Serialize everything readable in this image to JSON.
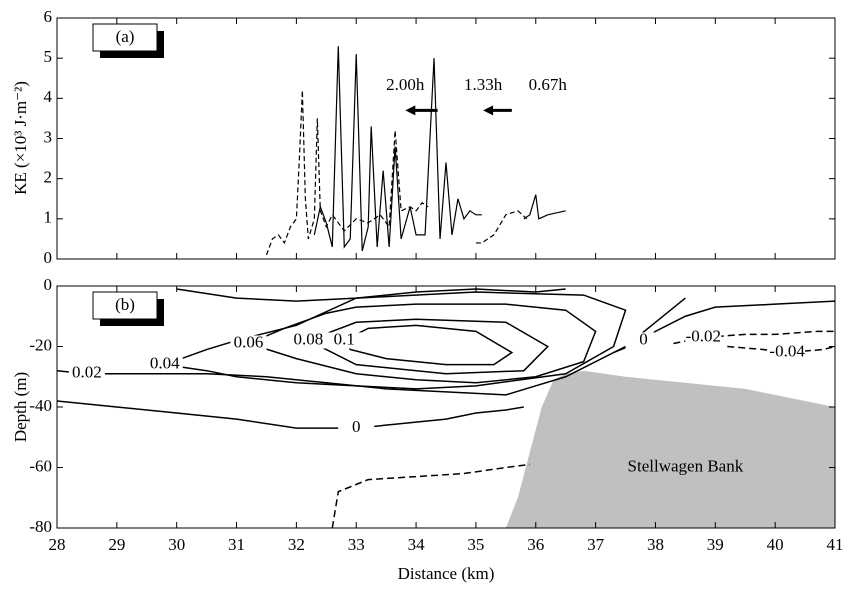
{
  "chart_data": [
    {
      "type": "line",
      "panel": "(a)",
      "ylabel": "KE (×10³ J·m⁻²)",
      "xlim": [
        28,
        41
      ],
      "xticks": [
        28,
        29,
        30,
        31,
        32,
        33,
        34,
        35,
        36,
        37,
        38,
        39,
        40,
        41
      ],
      "ylim": [
        0,
        6
      ],
      "yticks": [
        0,
        1,
        2,
        3,
        4,
        5,
        6
      ],
      "annotations": [
        "2.00h",
        "1.33h",
        "0.67h"
      ],
      "series": [
        {
          "color": "#000000",
          "dash": true,
          "x": [
            31.5,
            31.6,
            31.7,
            31.8,
            31.9,
            32.0,
            32.05,
            32.1,
            32.15,
            32.2,
            32.3,
            32.35,
            32.4,
            32.5,
            32.6,
            32.8,
            33.0,
            33.2,
            33.4,
            33.55,
            33.65,
            33.75,
            33.9,
            34.0,
            34.1,
            34.2
          ],
          "values": [
            0.1,
            0.5,
            0.6,
            0.4,
            0.8,
            1.0,
            2.5,
            4.2,
            1.5,
            0.5,
            1.0,
            3.5,
            1.2,
            0.8,
            1.1,
            0.7,
            1.0,
            0.9,
            1.1,
            0.8,
            3.2,
            1.2,
            1.3,
            1.2,
            1.4,
            1.3
          ]
        },
        {
          "color": "#000000",
          "dash": false,
          "x": [
            32.3,
            32.4,
            32.5,
            32.6,
            32.7,
            32.8,
            32.9,
            33.0,
            33.1,
            33.2,
            33.25,
            33.35,
            33.45,
            33.55,
            33.65,
            33.75,
            33.9,
            34.0,
            34.15,
            34.3,
            34.4,
            34.5,
            34.6,
            34.7,
            34.8,
            34.9,
            35.0,
            35.1
          ],
          "values": [
            0.6,
            1.3,
            0.9,
            0.3,
            5.3,
            0.3,
            0.5,
            5.1,
            0.2,
            0.8,
            3.3,
            0.3,
            2.2,
            0.3,
            2.8,
            0.5,
            1.3,
            0.6,
            0.6,
            5.0,
            0.5,
            2.4,
            0.6,
            1.5,
            1.0,
            1.2,
            1.1,
            1.1
          ]
        },
        {
          "color": "#000000",
          "dash": true,
          "x": [
            35.0,
            35.1,
            35.3,
            35.5,
            35.7,
            35.85
          ],
          "values": [
            0.4,
            0.4,
            0.6,
            1.1,
            1.2,
            1.0
          ]
        },
        {
          "color": "#000000",
          "dash": false,
          "x": [
            35.8,
            35.9,
            36.0,
            36.05,
            36.2,
            36.5
          ],
          "values": [
            1.0,
            1.1,
            1.6,
            1.0,
            1.1,
            1.2
          ]
        }
      ]
    },
    {
      "type": "contour",
      "panel": "(b)",
      "xlabel": "Distance (km)",
      "ylabel": "Depth (m)",
      "xlim": [
        28,
        41
      ],
      "xticks": [
        28,
        29,
        30,
        31,
        32,
        33,
        34,
        35,
        36,
        37,
        38,
        39,
        40,
        41
      ],
      "ylim": [
        -80,
        0
      ],
      "yticks": [
        -80,
        -60,
        -40,
        -20,
        0
      ],
      "contours": [
        {
          "level": 0.1,
          "dash": false,
          "labeled": true,
          "x": [
            32.8,
            33.2,
            34,
            35,
            35.6,
            35.3,
            34.5,
            33.5,
            32.9,
            32.8
          ],
          "values": [
            -18,
            -14,
            -13,
            -15,
            -22,
            -26,
            -26,
            -24,
            -21,
            -18
          ]
        },
        {
          "level": 0.08,
          "dash": false,
          "labeled": true,
          "x": [
            32.2,
            33,
            34,
            35.5,
            36.2,
            35.8,
            34.5,
            33,
            32.2
          ],
          "values": [
            -18,
            -12,
            -11,
            -12,
            -20,
            -28,
            -29,
            -26,
            -18
          ]
        },
        {
          "level": 0.06,
          "dash": false,
          "labeled": true,
          "x": [
            31.2,
            31.8,
            32.5,
            33,
            34,
            35.5,
            36.5,
            37,
            36.8,
            36,
            35,
            34,
            33,
            32,
            31.2
          ],
          "values": [
            -19,
            -14,
            -9,
            -7,
            -6,
            -6,
            -8,
            -15,
            -25,
            -30,
            -32,
            -31,
            -29,
            -24,
            -19
          ]
        },
        {
          "level": 0.04,
          "dash": false,
          "labeled": true,
          "x": [
            29.8,
            30.5,
            31,
            32,
            33,
            35,
            36.8,
            37.5,
            37.3,
            36.5,
            35,
            34,
            33,
            32,
            31,
            30.5,
            29.8
          ],
          "values": [
            -26,
            -21,
            -18,
            -13,
            -4,
            -2,
            -3,
            -8,
            -20,
            -29,
            -33,
            -34,
            -33,
            -32,
            -30,
            -28,
            -26
          ]
        },
        {
          "level": 0.02,
          "dash": false,
          "labeled": true,
          "x": [
            28,
            28.5,
            29.5,
            30.5,
            31.5,
            32.5,
            33.5,
            34.5,
            35.5,
            36.5,
            37.5,
            38,
            38.5
          ],
          "values": [
            -28,
            -29,
            -29,
            -29,
            -30,
            -32,
            -34,
            -35,
            -36,
            -30,
            -20,
            -12,
            -4
          ]
        },
        {
          "level": 0,
          "dash": false,
          "labeled": true,
          "x": [
            28,
            29,
            30,
            31,
            32,
            33,
            34,
            34.5,
            35,
            35.5,
            35.8
          ],
          "values": [
            -38,
            -40,
            -42,
            -44,
            -47,
            -47,
            -45,
            -44,
            -42,
            -41,
            -40
          ]
        },
        {
          "level": 0,
          "dash": false,
          "labeled": true,
          "x": [
            37.3,
            37.8,
            38,
            38.5,
            39,
            40,
            41
          ],
          "values": [
            -22,
            -18,
            -15,
            -10,
            -7,
            -6,
            -5
          ]
        },
        {
          "level": -0.02,
          "dash": true,
          "labeled": true,
          "x": [
            38.3,
            38.8,
            39.5,
            40,
            40.7,
            41
          ],
          "values": [
            -19,
            -17,
            -16,
            -16,
            -15,
            -15
          ]
        },
        {
          "level": -0.04,
          "dash": true,
          "labeled": true,
          "x": [
            39.2,
            39.8,
            40.2,
            40.8,
            41
          ],
          "values": [
            -20,
            -21,
            -22,
            -21,
            -20
          ]
        },
        {
          "level": 0,
          "dash": true,
          "labeled": false,
          "x": [
            32.6,
            32.7,
            33.2,
            34,
            34.8,
            35.5,
            35.9
          ],
          "values": [
            -80,
            -68,
            -64,
            -63,
            -62,
            -60,
            -59
          ]
        },
        {
          "level": 0.04,
          "dash": false,
          "labeled": false,
          "x": [
            30,
            31,
            32,
            33,
            34,
            35,
            36,
            36.5
          ],
          "values": [
            -1,
            -4,
            -5,
            -4,
            -2,
            -1,
            -2,
            -1
          ]
        }
      ],
      "bank": {
        "label": "Stellwagen Bank",
        "color": "#c0c0c0",
        "x": [
          35.5,
          35.7,
          35.9,
          36.1,
          36.3,
          36.5,
          36.8,
          37.5,
          38.5,
          39.5,
          40.5,
          41
        ],
        "values": [
          -80,
          -70,
          -55,
          -40,
          -31,
          -29,
          -28,
          -30,
          -32,
          -34,
          -38,
          -40
        ]
      }
    }
  ]
}
